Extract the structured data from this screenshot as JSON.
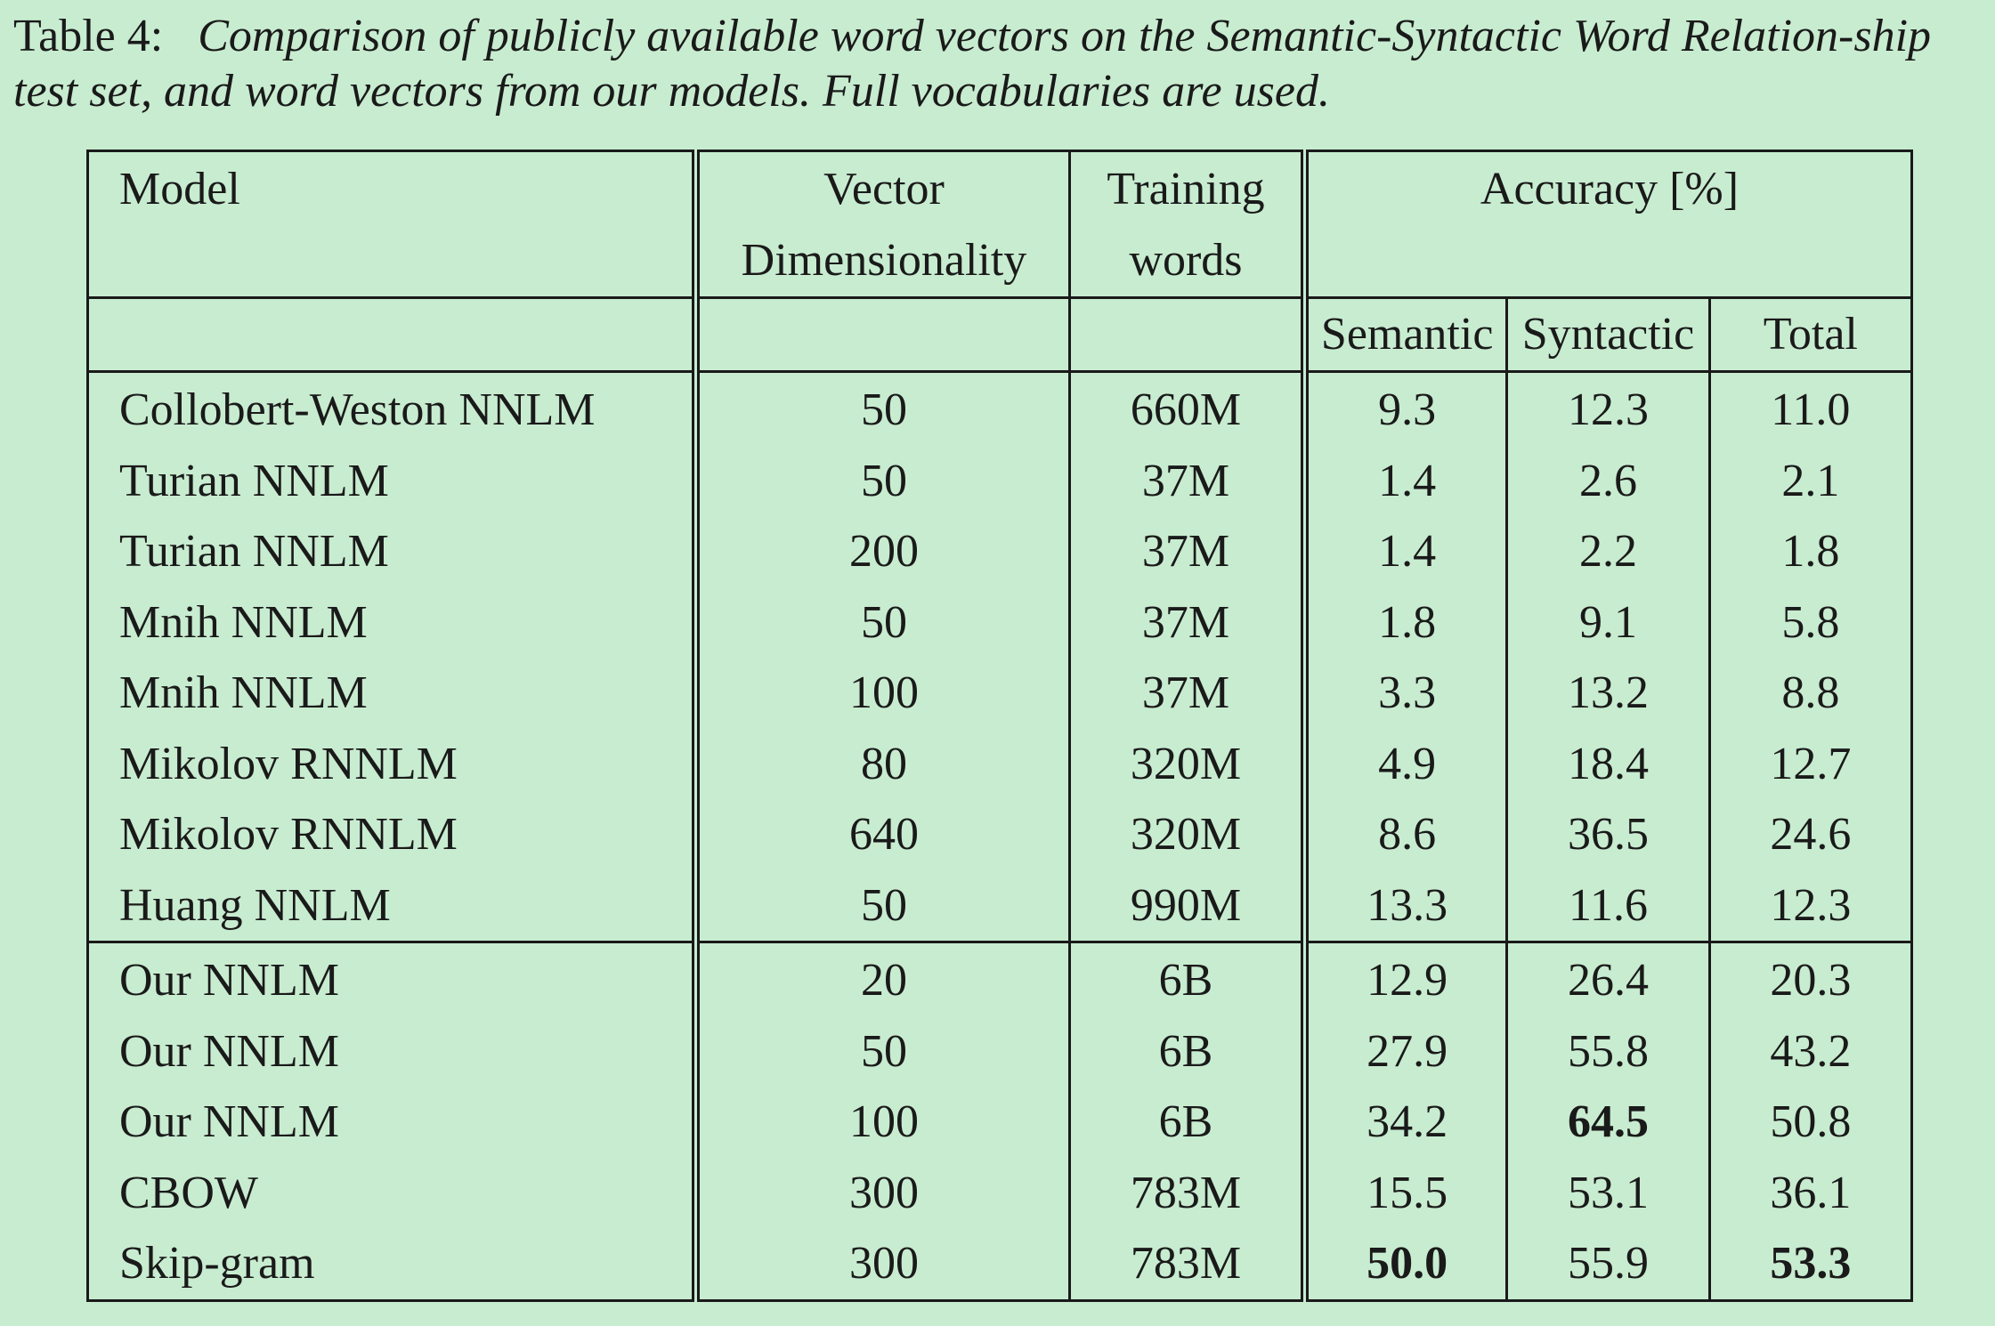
{
  "caption": {
    "lead": "Table 4:",
    "text": "Comparison of publicly available word vectors on the Semantic-Syntactic Word Relation-ship test set, and word vectors from our models. Full vocabularies are used."
  },
  "table": {
    "headers": {
      "model": "Model",
      "dim_line1": "Vector",
      "dim_line2": "Dimensionality",
      "words_line1": "Training",
      "words_line2": "words",
      "accuracy": "Accuracy [%]",
      "semantic": "Semantic",
      "syntactic": "Syntactic",
      "total": "Total"
    },
    "group1": [
      {
        "model": "Collobert-Weston NNLM",
        "dim": "50",
        "words": "660M",
        "semantic": "9.3",
        "syntactic": "12.3",
        "total": "11.0"
      },
      {
        "model": "Turian NNLM",
        "dim": "50",
        "words": "37M",
        "semantic": "1.4",
        "syntactic": "2.6",
        "total": "2.1"
      },
      {
        "model": "Turian NNLM",
        "dim": "200",
        "words": "37M",
        "semantic": "1.4",
        "syntactic": "2.2",
        "total": "1.8"
      },
      {
        "model": "Mnih NNLM",
        "dim": "50",
        "words": "37M",
        "semantic": "1.8",
        "syntactic": "9.1",
        "total": "5.8"
      },
      {
        "model": "Mnih NNLM",
        "dim": "100",
        "words": "37M",
        "semantic": "3.3",
        "syntactic": "13.2",
        "total": "8.8"
      },
      {
        "model": "Mikolov RNNLM",
        "dim": "80",
        "words": "320M",
        "semantic": "4.9",
        "syntactic": "18.4",
        "total": "12.7"
      },
      {
        "model": "Mikolov RNNLM",
        "dim": "640",
        "words": "320M",
        "semantic": "8.6",
        "syntactic": "36.5",
        "total": "24.6"
      },
      {
        "model": "Huang NNLM",
        "dim": "50",
        "words": "990M",
        "semantic": "13.3",
        "syntactic": "11.6",
        "total": "12.3"
      }
    ],
    "group2": [
      {
        "model": "Our NNLM",
        "dim": "20",
        "words": "6B",
        "semantic": "12.9",
        "syntactic": "26.4",
        "total": "20.3"
      },
      {
        "model": "Our NNLM",
        "dim": "50",
        "words": "6B",
        "semantic": "27.9",
        "syntactic": "55.8",
        "total": "43.2"
      },
      {
        "model": "Our NNLM",
        "dim": "100",
        "words": "6B",
        "semantic": "34.2",
        "syntactic": "64.5",
        "total": "50.8"
      },
      {
        "model": "CBOW",
        "dim": "300",
        "words": "783M",
        "semantic": "15.5",
        "syntactic": "53.1",
        "total": "36.1"
      },
      {
        "model": "Skip-gram",
        "dim": "300",
        "words": "783M",
        "semantic": "50.0",
        "syntactic": "55.9",
        "total": "53.3"
      }
    ],
    "bold_cells": [
      {
        "group": "group2",
        "row": 2,
        "col": "syntactic"
      },
      {
        "group": "group2",
        "row": 4,
        "col": "semantic"
      },
      {
        "group": "group2",
        "row": 4,
        "col": "total"
      }
    ]
  }
}
